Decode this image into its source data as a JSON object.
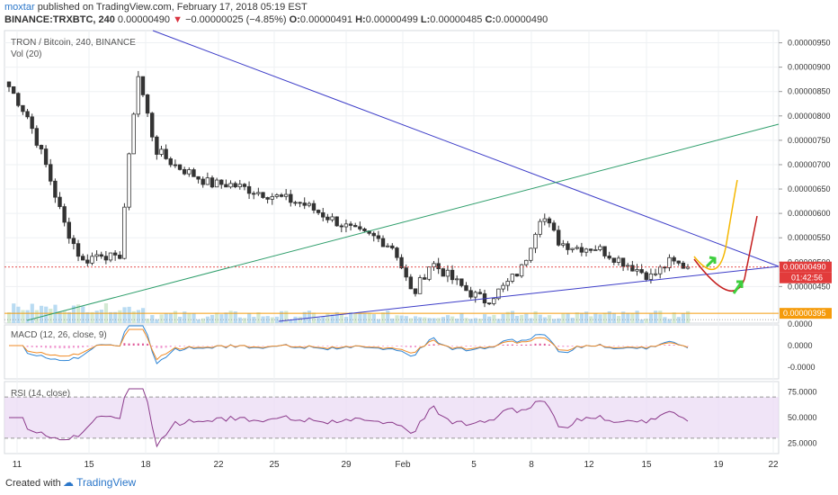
{
  "header": {
    "author": "moxtar",
    "published": "published on TradingView.com, February 17, 2018 05:19 EST",
    "symbol": "BINANCE:TRXBTC, 240",
    "last": "0.00000490",
    "arrow": "▼",
    "change": "−0.00000025 (−4.85%)",
    "open_label": "O:",
    "open": "0.00000491",
    "high_label": "H:",
    "high": "0.00000499",
    "low_label": "L:",
    "low": "0.00000485",
    "close_label": "C:",
    "close": "0.00000490"
  },
  "footer": {
    "created_with": "Created with",
    "brand": "TradingView"
  },
  "chart_data": [
    {
      "type": "candlestick",
      "title": "TRON / Bitcoin, 240, BINANCE",
      "subtitle": "Vol (20)",
      "x_ticks": [
        "11",
        "15",
        "18",
        "22",
        "25",
        "29",
        "Feb",
        "5",
        "8",
        "12",
        "15",
        "19",
        "22"
      ],
      "y_ticks": [
        "0.00000950",
        "0.00000900",
        "0.00000850",
        "0.00000800",
        "0.00000750",
        "0.00000700",
        "0.00000650",
        "0.00000600",
        "0.00000550",
        "0.00000500",
        "0.00000450"
      ],
      "ylim": [
        3.75e-06,
        9.75e-06
      ],
      "price_labels": [
        {
          "value": 4.9e-06,
          "text": "0.00000490",
          "color": "#e23b3b"
        },
        {
          "value": 3.95e-06,
          "text": "0.00000395",
          "color": "#f59b0b"
        }
      ],
      "countdown": "01:42:56",
      "close_path": [
        [
          "11",
          8.6e-06
        ],
        [
          "12",
          8e-06
        ],
        [
          "13",
          7e-06
        ],
        [
          "14",
          5.8e-06
        ],
        [
          "15",
          5e-06
        ],
        [
          "16",
          5.2e-06
        ],
        [
          "17",
          5e-06
        ],
        [
          "18",
          8.9e-06
        ],
        [
          "19",
          7.3e-06
        ],
        [
          "20",
          7e-06
        ],
        [
          "21",
          6.8e-06
        ],
        [
          "22",
          6.6e-06
        ],
        [
          "23",
          6.6e-06
        ],
        [
          "24",
          6.5e-06
        ],
        [
          "25",
          6.4e-06
        ],
        [
          "26",
          6.3e-06
        ],
        [
          "27",
          6.2e-06
        ],
        [
          "28",
          6e-06
        ],
        [
          "29",
          5.8e-06
        ],
        [
          "30",
          5.6e-06
        ],
        [
          "31",
          5.5e-06
        ],
        [
          "Feb",
          5.3e-06
        ],
        [
          "Feb 2",
          4.3e-06
        ],
        [
          "Feb 3",
          5e-06
        ],
        [
          "Feb 4",
          4.7e-06
        ],
        [
          "Feb 5",
          4.4e-06
        ],
        [
          "Feb 6",
          4.2e-06
        ],
        [
          "Feb 7",
          4.5e-06
        ],
        [
          "Feb 8",
          4.9e-06
        ],
        [
          "Feb 9",
          6e-06
        ],
        [
          "Feb 10",
          5.4e-06
        ],
        [
          "Feb 11",
          5.3e-06
        ],
        [
          "Feb 12",
          5.3e-06
        ],
        [
          "Feb 13",
          5.1e-06
        ],
        [
          "Feb 14",
          4.9e-06
        ],
        [
          "Feb 15",
          4.7e-06
        ],
        [
          "Feb 16",
          5e-06
        ],
        [
          "Feb 17",
          4.9e-06
        ]
      ]
    },
    {
      "type": "line",
      "title": "MACD (12, 26, close, 9)",
      "y_ticks": [
        "0.0000",
        "0.0000",
        "-0.0000"
      ]
    },
    {
      "type": "line",
      "title": "RSI (14, close)",
      "y_ticks": [
        "75.0000",
        "50.0000",
        "25.0000"
      ],
      "ylim": [
        15,
        85
      ],
      "bands": [
        30,
        70
      ]
    }
  ],
  "colors": {
    "up": "#4caf50",
    "down": "#e53935",
    "candle": "#333333",
    "grid": "#eef0f3",
    "trend": "#3c3cc8",
    "support": "#2e9e6b",
    "forecast_up": "#f5b700",
    "forecast_down": "#c41e1e",
    "arrow": "#3ecf3e"
  }
}
